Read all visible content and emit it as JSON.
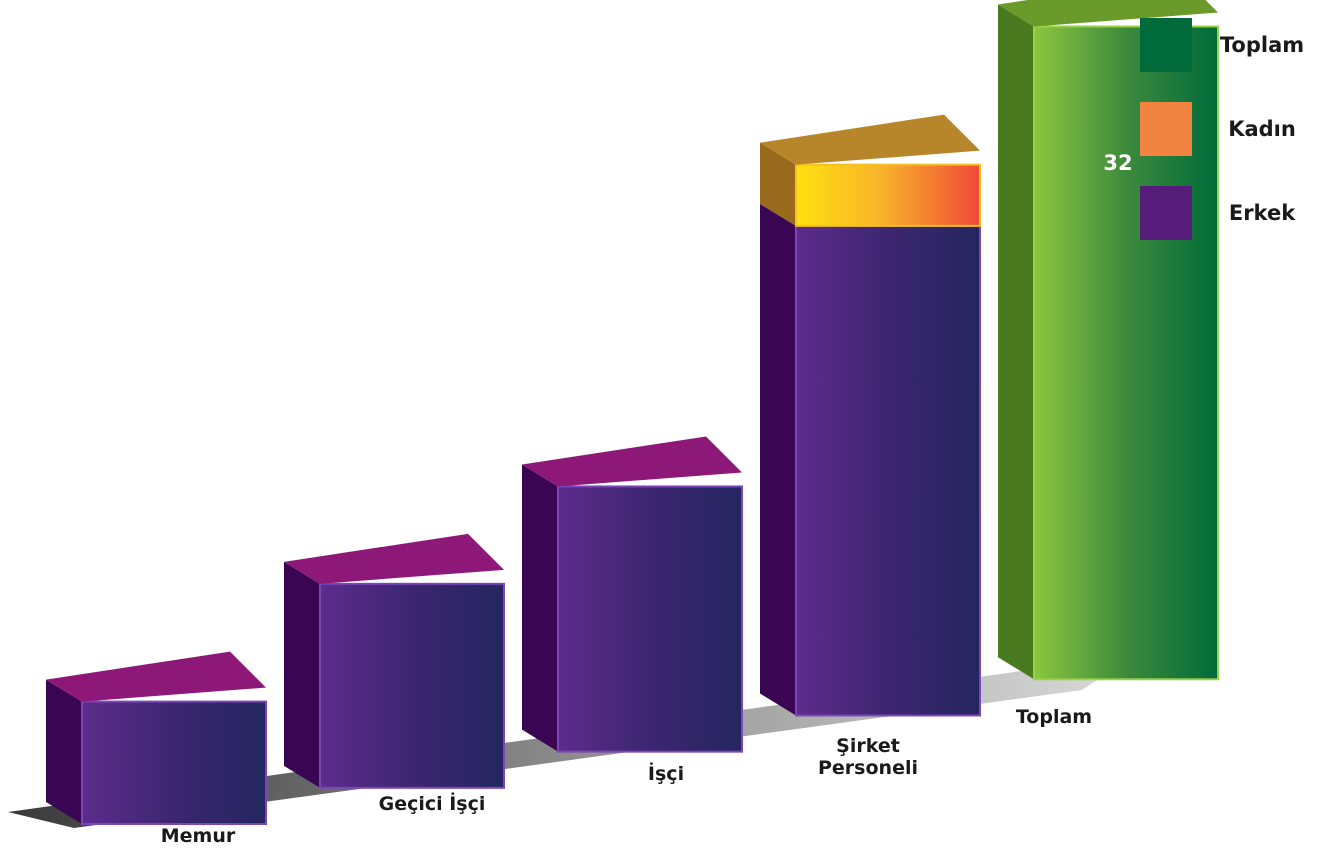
{
  "chart_data": {
    "type": "bar",
    "style": "3d-stacked",
    "categories": [
      "Memur",
      "Geçici İşçi",
      "İşçi",
      "Şirket Personeli",
      "Toplam"
    ],
    "series": [
      {
        "name": "Erkek",
        "color": "#561c7a",
        "values": [
          6,
          10,
          13,
          24,
          0
        ]
      },
      {
        "name": "Kadın",
        "color": "#f08440",
        "values": [
          0,
          0,
          0,
          3,
          0
        ]
      },
      {
        "name": "Toplam",
        "color": "#006b3a",
        "values": [
          0,
          0,
          0,
          0,
          32
        ]
      }
    ],
    "data_labels": [
      {
        "category": "Toplam",
        "series": "Toplam",
        "text": "32"
      }
    ],
    "legend": {
      "position": "top-right",
      "entries": [
        {
          "label": "Toplam",
          "color": "#006b3a"
        },
        {
          "label": "Kadın",
          "color": "#f08440"
        },
        {
          "label": "Erkek",
          "color": "#561c7a"
        }
      ]
    },
    "ylim": [
      0,
      35
    ],
    "grid": false,
    "title": "",
    "xlabel": "",
    "ylabel": ""
  }
}
